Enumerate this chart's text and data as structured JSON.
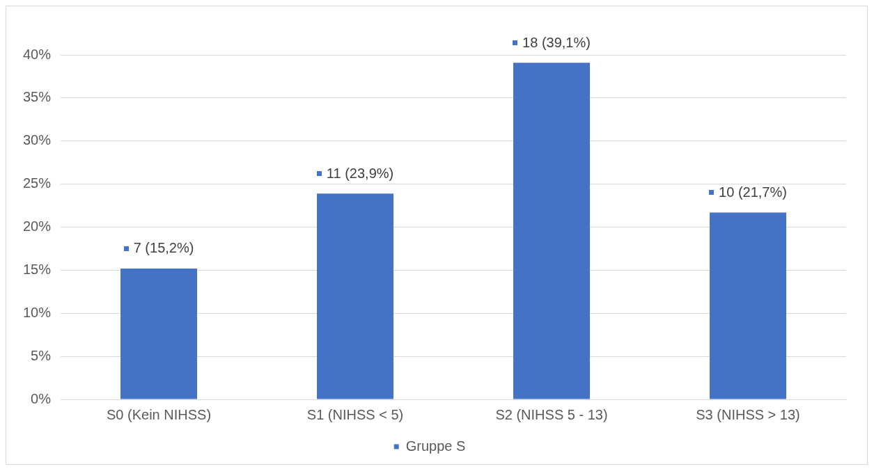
{
  "chart_data": {
    "type": "bar",
    "categories": [
      "S0 (Kein NIHSS)",
      "S1 (NIHSS < 5)",
      "S2 (NIHSS 5 - 13)",
      "S3 (NIHSS > 13)"
    ],
    "series": [
      {
        "name": "Gruppe S",
        "color": "#4472c4",
        "values": [
          15.2,
          23.9,
          39.1,
          21.7
        ],
        "value_labels": [
          "7 (15,2%)",
          "11 (23,9%)",
          "18 (39,1%)",
          "10 (21,7%)"
        ]
      }
    ],
    "ylim": [
      0,
      40
    ],
    "yticks": [
      {
        "value": 0,
        "label": "0%"
      },
      {
        "value": 5,
        "label": "5%"
      },
      {
        "value": 10,
        "label": "10%"
      },
      {
        "value": 15,
        "label": "15%"
      },
      {
        "value": 20,
        "label": "20%"
      },
      {
        "value": 25,
        "label": "25%"
      },
      {
        "value": 30,
        "label": "30%"
      },
      {
        "value": 35,
        "label": "35%"
      },
      {
        "value": 40,
        "label": "40%"
      }
    ],
    "grid": "y",
    "legend": "bottom"
  }
}
